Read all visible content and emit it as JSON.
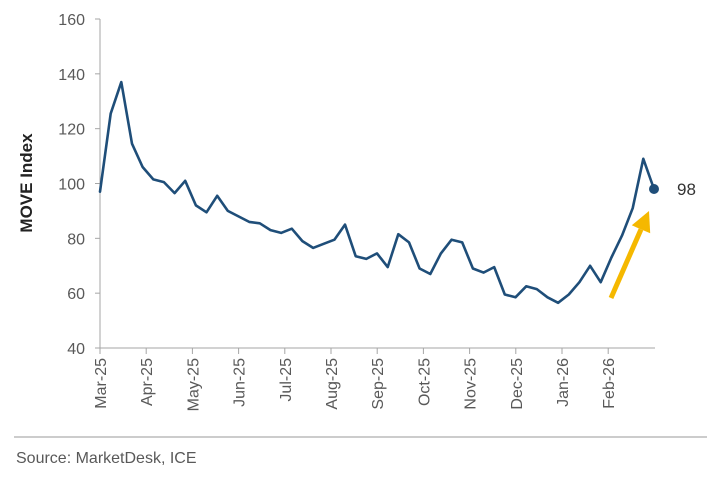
{
  "colors": {
    "line": "#1f4e79",
    "arrow": "#f5b800",
    "axis": "#a6a6a6",
    "text": "#595959",
    "divider": "#9a9a9a"
  },
  "chart_data": {
    "type": "line",
    "ylabel": "MOVE Index",
    "ylim": [
      40,
      160
    ],
    "yticks": [
      40,
      60,
      80,
      100,
      120,
      140,
      160
    ],
    "xtick_labels": [
      "Mar-25",
      "Apr-25",
      "May-25",
      "Jun-25",
      "Jul-25",
      "Aug-25",
      "Sep-25",
      "Oct-25",
      "Nov-25",
      "Dec-25",
      "Jan-26",
      "Feb-26"
    ],
    "grid": false,
    "values": [
      97,
      125.5,
      137,
      114.5,
      106,
      101.5,
      100.5,
      96.5,
      101,
      92,
      89.5,
      95.5,
      90,
      88,
      86,
      85.5,
      83,
      82,
      83.5,
      79,
      76.5,
      78,
      79.5,
      85,
      73.5,
      72.5,
      74.5,
      69.5,
      81.5,
      78.5,
      69,
      67,
      74.5,
      79.5,
      78.5,
      69,
      67.5,
      69.5,
      59.5,
      58.5,
      62.5,
      61.5,
      58.5,
      56.5,
      59.5,
      64,
      70,
      64,
      73,
      81,
      91,
      109,
      98
    ],
    "end_label": "98",
    "annotation": "upward arrow highlighting recent rise"
  },
  "source": "Source: MarketDesk, ICE"
}
